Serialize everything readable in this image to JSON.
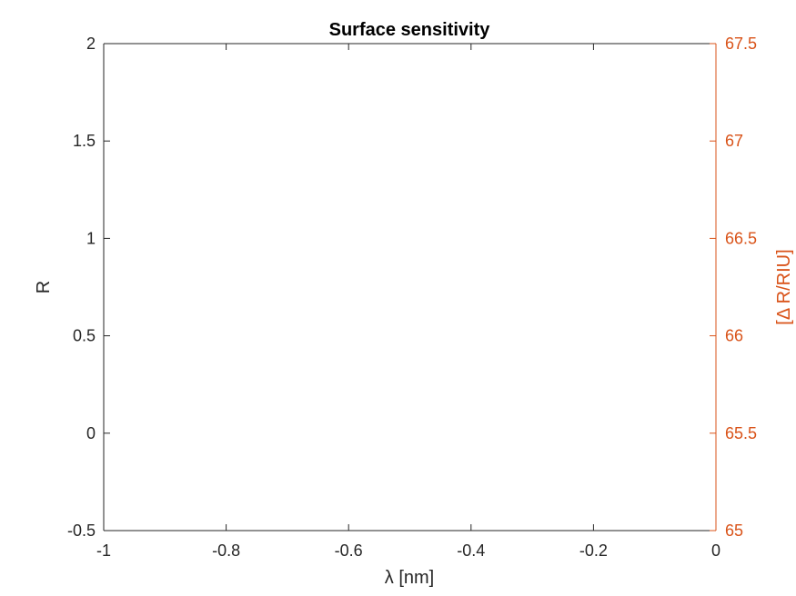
{
  "chart_data": {
    "type": "line",
    "title": "Surface sensitivity",
    "xlabel": "λ [nm]",
    "ylabel": "R",
    "y2label": "[Δ R/RIU]",
    "xlim": [
      -1,
      0
    ],
    "ylim": [
      -0.5,
      2
    ],
    "y2lim": [
      65,
      67.5
    ],
    "xticks": [
      -1,
      -0.8,
      -0.6,
      -0.4,
      -0.2,
      0
    ],
    "xtick_labels": [
      "-1",
      "-0.8",
      "-0.6",
      "-0.4",
      "-0.2",
      "0"
    ],
    "yticks": [
      -0.5,
      0,
      0.5,
      1,
      1.5,
      2
    ],
    "ytick_labels": [
      "-0.5",
      "0",
      "0.5",
      "1",
      "1.5",
      "2"
    ],
    "y2ticks": [
      65,
      65.5,
      66,
      66.5,
      67,
      67.5
    ],
    "y2tick_labels": [
      "65",
      "65.5",
      "66",
      "66.5",
      "67",
      "67.5"
    ],
    "series": [],
    "grid": false,
    "colors": {
      "left_axis": "#262626",
      "right_axis": "#d95319",
      "background": "#ffffff"
    }
  }
}
